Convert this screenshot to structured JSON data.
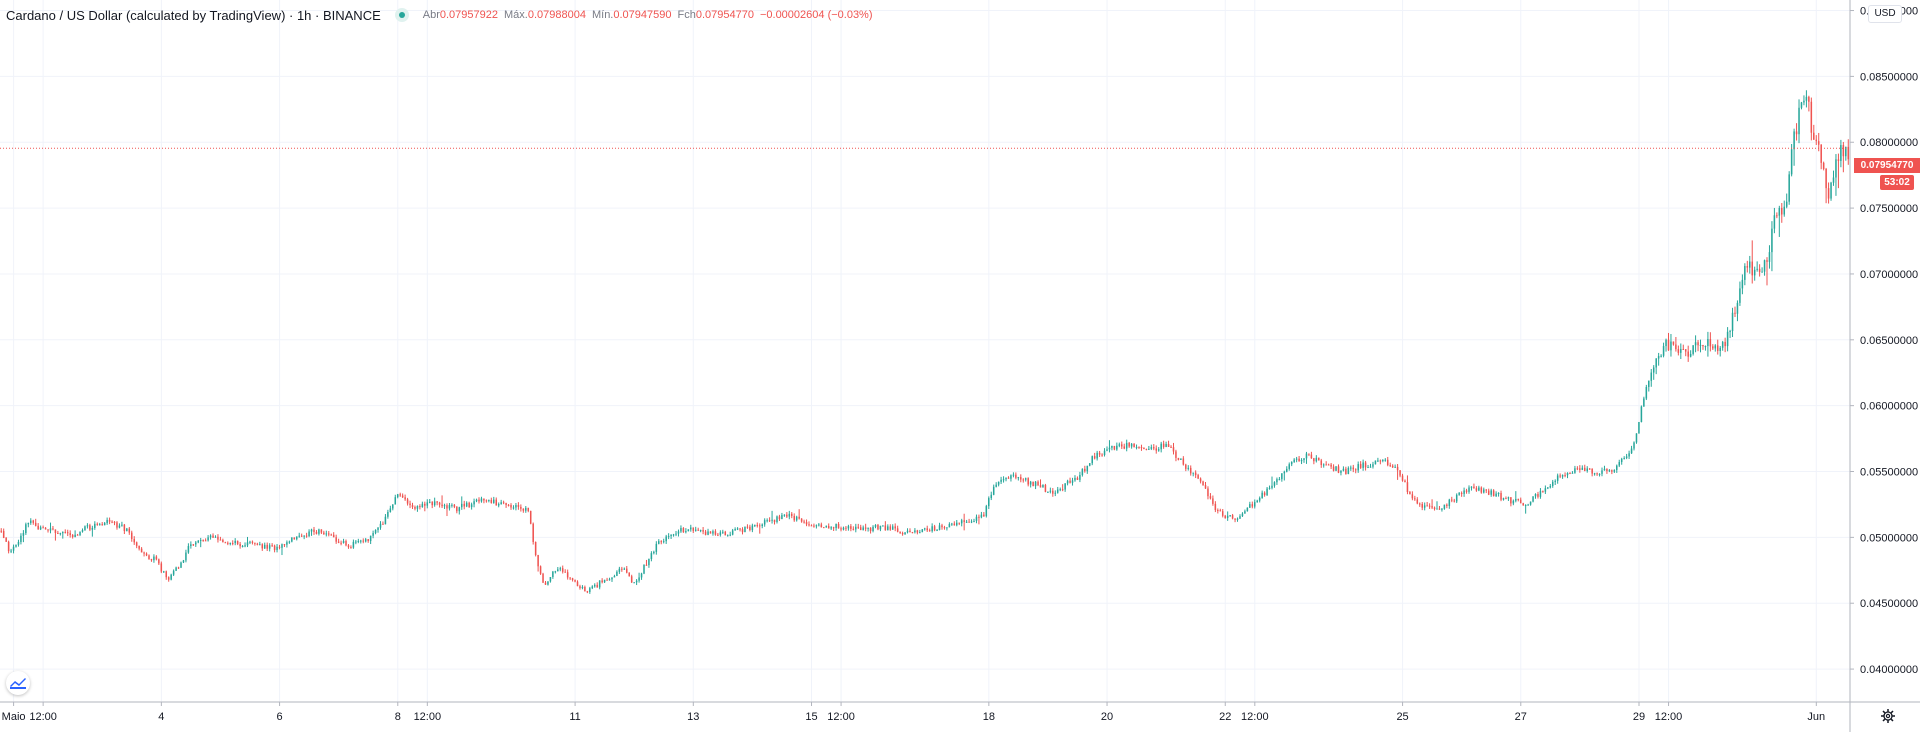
{
  "legend": {
    "title": "Cardano / US Dollar (calculated by TradingView) · 1h · BINANCE",
    "open_label": "Abr",
    "open_value": "0.07957922",
    "high_label": "Máx.",
    "high_value": "0.07988004",
    "low_label": "Mín.",
    "low_value": "0.07947590",
    "close_label": "Fch",
    "close_value": "0.07954770",
    "change_value": "−0.00002604 (−0.03%)"
  },
  "currency_label": "USD",
  "last_price_label": "0.07954770",
  "countdown_label": "53:02",
  "chart_data": {
    "type": "candlestick",
    "symbol": "ADAUSD",
    "exchange": "BINANCE",
    "interval": "1h",
    "up_color": "#26a69a",
    "down_color": "#ef5350",
    "last_price": 0.0795477,
    "y_axis": {
      "ticks": [
        "0.04000000",
        "0.04500000",
        "0.05000000",
        "0.05500000",
        "0.06000000",
        "0.06500000",
        "0.07000000",
        "0.07500000",
        "0.08000000",
        "0.08500000",
        "0.09000000"
      ],
      "ylim": [
        0.0375,
        0.0908
      ]
    },
    "x_axis": {
      "ticks": [
        {
          "label": "Maio",
          "t": 0.5
        },
        {
          "label": "12:00",
          "t": 1.0
        },
        {
          "label": "4",
          "t": 3.0
        },
        {
          "label": "6",
          "t": 5.0
        },
        {
          "label": "8",
          "t": 7.0
        },
        {
          "label": "12:00",
          "t": 7.5
        },
        {
          "label": "11",
          "t": 10.0
        },
        {
          "label": "13",
          "t": 12.0
        },
        {
          "label": "15",
          "t": 14.0
        },
        {
          "label": "12:00",
          "t": 14.5
        },
        {
          "label": "18",
          "t": 17.0
        },
        {
          "label": "20",
          "t": 19.0
        },
        {
          "label": "22",
          "t": 21.0
        },
        {
          "label": "12:00",
          "t": 21.5
        },
        {
          "label": "25",
          "t": 24.0
        },
        {
          "label": "27",
          "t": 26.0
        },
        {
          "label": "29",
          "t": 28.0
        },
        {
          "label": "12:00",
          "t": 28.5
        },
        {
          "label": "Jun",
          "t": 31.0
        }
      ],
      "range_days": [
        0.27,
        31.57
      ],
      "unit": "days since May 2 00:00"
    },
    "price_path": [
      [
        0.27,
        0.0505
      ],
      [
        0.45,
        0.0488
      ],
      [
        0.6,
        0.0498
      ],
      [
        0.75,
        0.0512
      ],
      [
        1.0,
        0.0506
      ],
      [
        1.5,
        0.0502
      ],
      [
        1.8,
        0.0508
      ],
      [
        2.1,
        0.0512
      ],
      [
        2.4,
        0.0506
      ],
      [
        2.6,
        0.049
      ],
      [
        2.9,
        0.0483
      ],
      [
        3.1,
        0.0468
      ],
      [
        3.3,
        0.0478
      ],
      [
        3.5,
        0.0496
      ],
      [
        3.8,
        0.05
      ],
      [
        4.2,
        0.0496
      ],
      [
        4.6,
        0.0494
      ],
      [
        4.9,
        0.0492
      ],
      [
        5.3,
        0.05
      ],
      [
        5.6,
        0.0505
      ],
      [
        5.9,
        0.05
      ],
      [
        6.2,
        0.0494
      ],
      [
        6.5,
        0.0498
      ],
      [
        6.8,
        0.0515
      ],
      [
        7.0,
        0.0532
      ],
      [
        7.3,
        0.0522
      ],
      [
        7.6,
        0.0526
      ],
      [
        8.0,
        0.0522
      ],
      [
        8.4,
        0.0528
      ],
      [
        8.8,
        0.0525
      ],
      [
        9.2,
        0.0522
      ],
      [
        9.35,
        0.048
      ],
      [
        9.5,
        0.0462
      ],
      [
        9.7,
        0.0478
      ],
      [
        9.9,
        0.047
      ],
      [
        10.2,
        0.0458
      ],
      [
        10.5,
        0.0468
      ],
      [
        10.8,
        0.0476
      ],
      [
        11.0,
        0.0465
      ],
      [
        11.2,
        0.048
      ],
      [
        11.4,
        0.0495
      ],
      [
        11.7,
        0.0505
      ],
      [
        12.0,
        0.0506
      ],
      [
        12.4,
        0.0502
      ],
      [
        12.8,
        0.0505
      ],
      [
        13.2,
        0.0512
      ],
      [
        13.6,
        0.0516
      ],
      [
        14.0,
        0.051
      ],
      [
        14.4,
        0.0508
      ],
      [
        14.8,
        0.0506
      ],
      [
        15.2,
        0.0508
      ],
      [
        15.6,
        0.0504
      ],
      [
        16.0,
        0.0506
      ],
      [
        16.5,
        0.0512
      ],
      [
        16.9,
        0.0516
      ],
      [
        17.1,
        0.054
      ],
      [
        17.4,
        0.0546
      ],
      [
        17.8,
        0.054
      ],
      [
        18.1,
        0.0534
      ],
      [
        18.5,
        0.0546
      ],
      [
        18.8,
        0.0562
      ],
      [
        19.1,
        0.0568
      ],
      [
        19.4,
        0.057
      ],
      [
        19.7,
        0.0566
      ],
      [
        20.0,
        0.057
      ],
      [
        20.3,
        0.0556
      ],
      [
        20.6,
        0.054
      ],
      [
        20.9,
        0.0518
      ],
      [
        21.2,
        0.0515
      ],
      [
        21.5,
        0.0526
      ],
      [
        21.8,
        0.054
      ],
      [
        22.1,
        0.0556
      ],
      [
        22.4,
        0.0562
      ],
      [
        22.7,
        0.0554
      ],
      [
        23.0,
        0.055
      ],
      [
        23.3,
        0.0554
      ],
      [
        23.6,
        0.0558
      ],
      [
        23.9,
        0.0554
      ],
      [
        24.1,
        0.0535
      ],
      [
        24.3,
        0.0524
      ],
      [
        24.6,
        0.0522
      ],
      [
        24.9,
        0.053
      ],
      [
        25.2,
        0.0538
      ],
      [
        25.5,
        0.0534
      ],
      [
        25.8,
        0.0528
      ],
      [
        26.1,
        0.0526
      ],
      [
        26.4,
        0.0536
      ],
      [
        26.7,
        0.0548
      ],
      [
        27.0,
        0.0552
      ],
      [
        27.3,
        0.055
      ],
      [
        27.6,
        0.0552
      ],
      [
        27.9,
        0.057
      ],
      [
        28.1,
        0.061
      ],
      [
        28.3,
        0.0642
      ],
      [
        28.6,
        0.0648
      ],
      [
        28.8,
        0.0638
      ],
      [
        29.1,
        0.0648
      ],
      [
        29.4,
        0.0642
      ],
      [
        29.6,
        0.067
      ],
      [
        29.8,
        0.0705
      ],
      [
        30.1,
        0.07
      ],
      [
        30.3,
        0.074
      ],
      [
        30.5,
        0.0755
      ],
      [
        30.6,
        0.08
      ],
      [
        30.75,
        0.083
      ],
      [
        30.85,
        0.0842
      ],
      [
        30.95,
        0.08
      ],
      [
        31.1,
        0.079
      ],
      [
        31.2,
        0.076
      ],
      [
        31.3,
        0.078
      ],
      [
        31.4,
        0.0796
      ],
      [
        31.5,
        0.079
      ],
      [
        31.57,
        0.0795
      ]
    ]
  }
}
